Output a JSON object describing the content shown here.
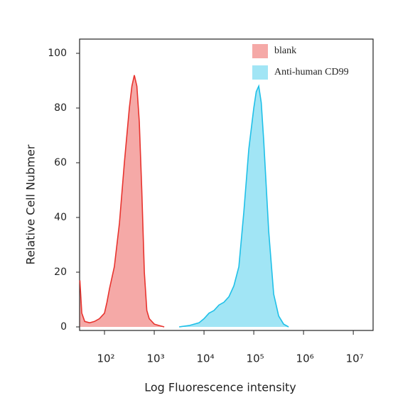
{
  "chart_data": {
    "type": "area",
    "xlabel": "Log Fluorescence intensity",
    "ylabel": "Relative Cell Nubmer",
    "xscale": "log",
    "xlim": [
      31.6,
      25000000
    ],
    "ylim": [
      -1.3,
      105.2
    ],
    "yticks": [
      0,
      20,
      40,
      60,
      80,
      100
    ],
    "xticks": [
      {
        "value": 100,
        "label": "10²"
      },
      {
        "value": 1000,
        "label": "10³"
      },
      {
        "value": 10000,
        "label": "10⁴"
      },
      {
        "value": 100000,
        "label": "10⁵"
      },
      {
        "value": 1000000,
        "label": "10⁶"
      },
      {
        "value": 10000000,
        "label": "10⁷"
      }
    ],
    "legend": "upper right",
    "series": [
      {
        "name": "blank",
        "color": "#e8332e",
        "x": [
          32,
          35,
          40,
          50,
          63,
          79,
          100,
          112,
          126,
          158,
          200,
          251,
          316,
          355,
          398,
          447,
          501,
          562,
          631,
          708,
          794,
          1000,
          1259,
          1585
        ],
        "values": [
          17,
          5,
          2,
          1.5,
          2,
          3,
          5,
          9,
          14,
          22,
          38,
          60,
          80,
          88,
          92,
          88,
          75,
          50,
          20,
          6,
          3,
          1,
          0.5,
          0
        ]
      },
      {
        "name": "Anti-human CD99",
        "color": "#1fc0e8",
        "x": [
          3162,
          5012,
          7943,
          10000,
          12589,
          15849,
          19953,
          25119,
          31623,
          39811,
          50119,
          63096,
          79433,
          100000,
          112202,
          125893,
          141254,
          158489,
          199526,
          251189,
          316228,
          398107,
          501187
        ],
        "values": [
          0,
          0.5,
          1.5,
          3,
          5,
          6,
          8,
          9,
          11,
          15,
          22,
          42,
          65,
          80,
          86,
          88,
          82,
          68,
          35,
          12,
          4,
          1,
          0
        ]
      }
    ]
  }
}
